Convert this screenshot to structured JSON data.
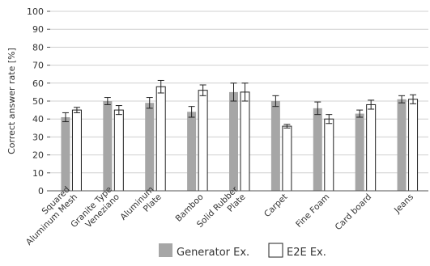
{
  "chart_data": {
    "type": "bar",
    "title": "",
    "xlabel": "",
    "ylabel": "Correct answer rate [%]",
    "ylim": [
      0,
      100
    ],
    "yticks": [
      0,
      10,
      20,
      30,
      40,
      50,
      60,
      70,
      80,
      90,
      100
    ],
    "grid": true,
    "legend_position": "bottom",
    "categories": [
      [
        "Squared",
        "Aluminum Mesh"
      ],
      [
        "Granite Type",
        "Veneziano"
      ],
      [
        "Aluminum",
        "Plate"
      ],
      [
        "Bamboo"
      ],
      [
        "Solid Rubber",
        "Plate"
      ],
      [
        "Carpet"
      ],
      [
        "Fine Foam"
      ],
      [
        "Card board"
      ],
      [
        "Jeans"
      ]
    ],
    "series": [
      {
        "name": "Generator Ex.",
        "color": "#a6a6a6",
        "values": [
          41,
          50,
          49,
          44,
          55,
          50,
          46,
          43,
          51
        ],
        "errors": [
          2.5,
          2,
          3,
          3,
          5,
          3,
          3.5,
          2,
          2
        ]
      },
      {
        "name": "E2E Ex.",
        "color": "#ffffff",
        "values": [
          45,
          45,
          58,
          56,
          55,
          36,
          40,
          48,
          51
        ],
        "errors": [
          1.5,
          2.5,
          3.5,
          3,
          5,
          1,
          2.5,
          2.5,
          2.5
        ]
      }
    ]
  }
}
